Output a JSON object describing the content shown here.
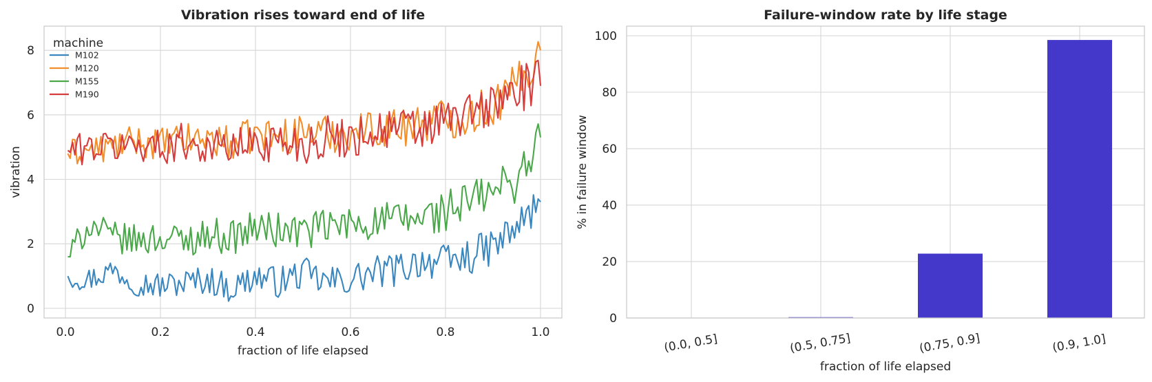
{
  "chart_data": [
    {
      "type": "line",
      "title": "Vibration rises toward end of life",
      "xlabel": "fraction of life elapsed",
      "ylabel": "vibration",
      "xlim": [
        -0.045,
        1.045
      ],
      "ylim": [
        -0.3,
        8.75
      ],
      "xticks": [
        0.0,
        0.2,
        0.4,
        0.6,
        0.8,
        1.0
      ],
      "xtick_labels": [
        "0.0",
        "0.2",
        "0.4",
        "0.6",
        "0.8",
        "1.0"
      ],
      "yticks": [
        0,
        2,
        4,
        6,
        8
      ],
      "ytick_labels": [
        "0",
        "2",
        "4",
        "6",
        "8"
      ],
      "grid": true,
      "legend": {
        "title": "machine",
        "placement": "top-left"
      },
      "series": [
        {
          "name": "M102",
          "color": "#3a87c0",
          "points": [
            [
              0.005,
              1.0
            ],
            [
              0.05,
              0.9
            ],
            [
              0.1,
              1.2
            ],
            [
              0.15,
              0.8
            ],
            [
              0.2,
              0.7
            ],
            [
              0.25,
              0.8
            ],
            [
              0.3,
              0.9
            ],
            [
              0.35,
              0.6
            ],
            [
              0.4,
              1.0
            ],
            [
              0.45,
              0.8
            ],
            [
              0.5,
              1.1
            ],
            [
              0.55,
              0.8
            ],
            [
              0.6,
              0.9
            ],
            [
              0.65,
              1.1
            ],
            [
              0.7,
              1.2
            ],
            [
              0.75,
              1.5
            ],
            [
              0.8,
              1.4
            ],
            [
              0.85,
              1.6
            ],
            [
              0.9,
              1.9
            ],
            [
              0.95,
              2.5
            ],
            [
              1.0,
              3.3
            ]
          ]
        },
        {
          "name": "M120",
          "color": "#f28e2b",
          "points": [
            [
              0.005,
              4.8
            ],
            [
              0.05,
              4.9
            ],
            [
              0.1,
              5.0
            ],
            [
              0.15,
              5.2
            ],
            [
              0.2,
              5.1
            ],
            [
              0.25,
              5.2
            ],
            [
              0.3,
              5.3
            ],
            [
              0.35,
              5.1
            ],
            [
              0.4,
              5.4
            ],
            [
              0.45,
              5.3
            ],
            [
              0.5,
              5.5
            ],
            [
              0.55,
              5.4
            ],
            [
              0.6,
              5.5
            ],
            [
              0.65,
              5.6
            ],
            [
              0.7,
              5.6
            ],
            [
              0.75,
              5.8
            ],
            [
              0.8,
              5.9
            ],
            [
              0.85,
              6.0
            ],
            [
              0.9,
              6.3
            ],
            [
              0.95,
              6.9
            ],
            [
              1.0,
              8.0
            ]
          ]
        },
        {
          "name": "M155",
          "color": "#4aa84a",
          "points": [
            [
              0.005,
              1.6
            ],
            [
              0.05,
              2.6
            ],
            [
              0.1,
              2.2
            ],
            [
              0.15,
              2.1
            ],
            [
              0.2,
              2.2
            ],
            [
              0.25,
              2.1
            ],
            [
              0.3,
              2.3
            ],
            [
              0.35,
              2.2
            ],
            [
              0.4,
              2.5
            ],
            [
              0.45,
              2.4
            ],
            [
              0.5,
              2.4
            ],
            [
              0.55,
              2.5
            ],
            [
              0.6,
              2.6
            ],
            [
              0.65,
              2.7
            ],
            [
              0.7,
              2.7
            ],
            [
              0.75,
              2.8
            ],
            [
              0.8,
              3.0
            ],
            [
              0.85,
              3.3
            ],
            [
              0.9,
              3.6
            ],
            [
              0.95,
              4.0
            ],
            [
              1.0,
              5.3
            ]
          ]
        },
        {
          "name": "M190",
          "color": "#d63c3c",
          "points": [
            [
              0.005,
              4.9
            ],
            [
              0.05,
              5.0
            ],
            [
              0.1,
              5.0
            ],
            [
              0.15,
              5.1
            ],
            [
              0.2,
              5.0
            ],
            [
              0.25,
              5.2
            ],
            [
              0.3,
              5.0
            ],
            [
              0.35,
              5.0
            ],
            [
              0.4,
              5.1
            ],
            [
              0.45,
              5.2
            ],
            [
              0.5,
              5.1
            ],
            [
              0.55,
              5.3
            ],
            [
              0.6,
              5.3
            ],
            [
              0.65,
              5.5
            ],
            [
              0.7,
              5.6
            ],
            [
              0.75,
              5.5
            ],
            [
              0.8,
              5.8
            ],
            [
              0.85,
              6.0
            ],
            [
              0.9,
              6.3
            ],
            [
              0.95,
              6.8
            ],
            [
              1.0,
              6.9
            ]
          ]
        }
      ]
    },
    {
      "type": "bar",
      "title": "Failure-window rate by life stage",
      "xlabel": "fraction of life elapsed",
      "ylabel": "% in failure window",
      "categories": [
        "(0.0, 0.5]",
        "(0.5, 0.75]",
        "(0.75, 0.9]",
        "(0.9, 1.0]"
      ],
      "values": [
        0.0,
        0.3,
        22.8,
        98.5
      ],
      "ylim": [
        0,
        103.4
      ],
      "yticks": [
        0,
        20,
        40,
        60,
        80,
        100
      ],
      "ytick_labels": [
        "0",
        "20",
        "40",
        "60",
        "80",
        "100"
      ],
      "grid": true,
      "color": "#4338ca"
    }
  ]
}
